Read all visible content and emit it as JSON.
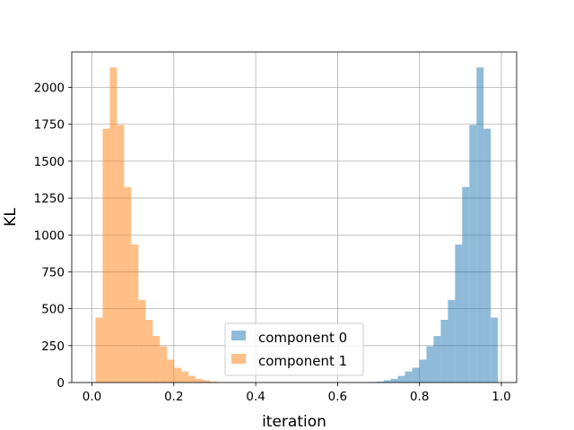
{
  "chart_data": {
    "type": "histogram",
    "title": "",
    "xlabel": "iteration",
    "ylabel": "KL",
    "xlim": [
      -0.0493,
      1.0372
    ],
    "ylim": [
      0,
      2240
    ],
    "x_ticks": [
      0.0,
      0.2,
      0.4,
      0.6,
      0.8,
      1.0
    ],
    "x_tick_labels": [
      "0.0",
      "0.2",
      "0.4",
      "0.6",
      "0.8",
      "1.0"
    ],
    "y_ticks": [
      0,
      250,
      500,
      750,
      1000,
      1250,
      1500,
      1750,
      2000
    ],
    "y_tick_labels": [
      "0",
      "250",
      "500",
      "750",
      "1000",
      "1250",
      "1500",
      "1750",
      "2000"
    ],
    "grid": true,
    "legend_position": "lower-center",
    "bin_width": 0.01746,
    "series": [
      {
        "name": "component 0",
        "color": "#1f77b4",
        "alpha": 0.5,
        "bin_starts": [
          0.6599,
          0.6773,
          0.6948,
          0.7123,
          0.7297,
          0.7472,
          0.7646,
          0.7821,
          0.7996,
          0.817,
          0.8345,
          0.852,
          0.8694,
          0.8869,
          0.9043,
          0.9218,
          0.9393,
          0.9567,
          0.9742
        ],
        "counts": [
          2,
          3,
          6,
          15,
          25,
          45,
          75,
          100,
          155,
          245,
          315,
          425,
          560,
          935,
          1325,
          1745,
          2135,
          1720,
          440
        ]
      },
      {
        "name": "component 1",
        "color": "#ff7f0e",
        "alpha": 0.5,
        "bin_starts": [
          0.0087,
          0.0262,
          0.0436,
          0.0611,
          0.0786,
          0.096,
          0.1135,
          0.131,
          0.1484,
          0.1659,
          0.1833,
          0.2008,
          0.2183,
          0.2357,
          0.2532,
          0.2706,
          0.2881,
          0.3056,
          0.323
        ],
        "counts": [
          440,
          1720,
          2135,
          1745,
          1325,
          935,
          560,
          425,
          315,
          245,
          155,
          100,
          75,
          45,
          25,
          15,
          6,
          3,
          2
        ]
      }
    ]
  }
}
